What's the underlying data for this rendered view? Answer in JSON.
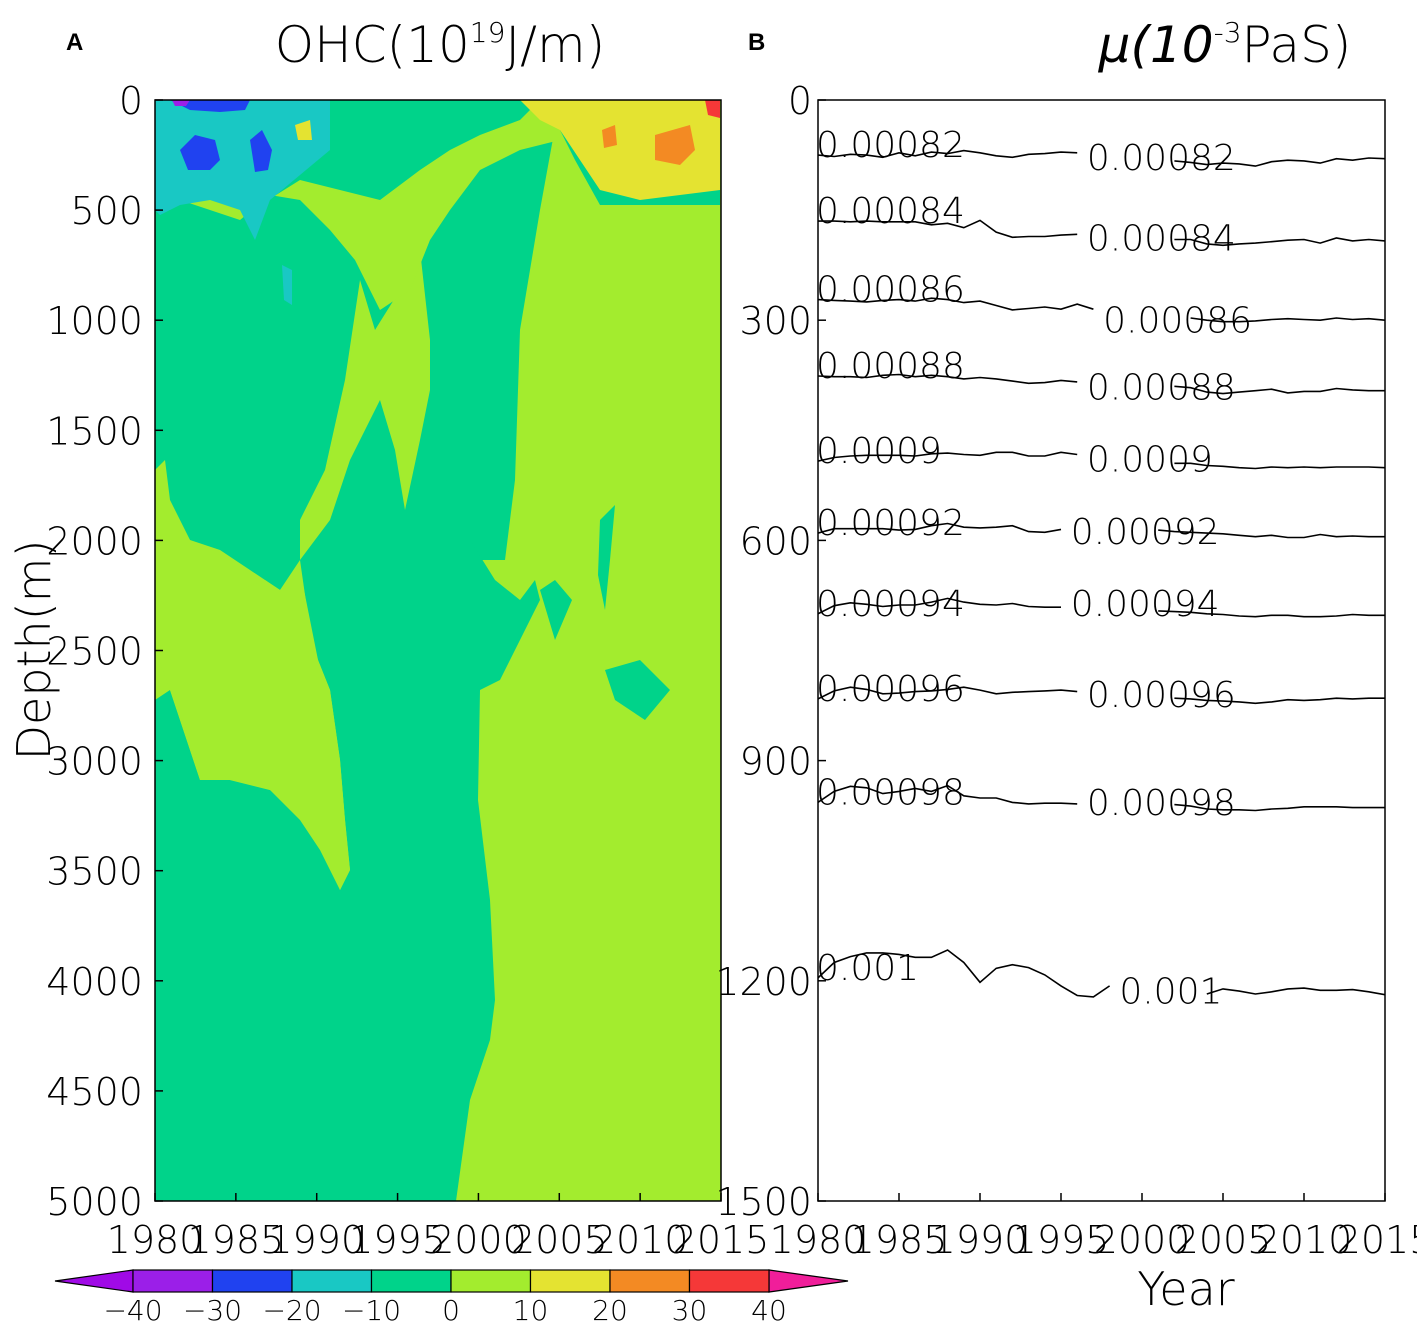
{
  "chart_data": [
    {
      "panel": "A",
      "type": "heatmap",
      "title": "OHC(10^19J/m)",
      "title_base": "OHC(10",
      "title_exp": "19",
      "title_tail": "J/m)",
      "ylabel": "Depth(m)",
      "xlabel": "",
      "xlim": [
        1980,
        2015
      ],
      "ylim": [
        0,
        5000
      ],
      "y_inverted": true,
      "x_ticks": [
        1980,
        1985,
        1990,
        1995,
        2000,
        2005,
        2010,
        2015
      ],
      "y_ticks": [
        0,
        500,
        1000,
        1500,
        2000,
        2500,
        3000,
        3500,
        4000,
        4500,
        5000
      ],
      "colorbar": {
        "levels": [
          -40,
          -30,
          -20,
          -10,
          0,
          10,
          20,
          30,
          40
        ],
        "colors": [
          "#9B1FE8",
          "#2042F0",
          "#19C8C4",
          "#00D38A",
          "#A3EC2E",
          "#E4E331",
          "#F38A23",
          "#F53838"
        ],
        "under_color": "#A00AE6",
        "over_color": "#F01E9A"
      },
      "regions": [
        {
          "range": "10 to 20",
          "description": "surface warming after ~2004, 0–400 m",
          "vertices": [
            [
              2003,
              0
            ],
            [
              2015,
              0
            ],
            [
              2015,
              450
            ],
            [
              2008,
              450
            ],
            [
              2003,
              350
            ],
            [
              2001,
              200
            ]
          ]
        },
        {
          "range": "20 to 30",
          "description": "warm patch ~2010",
          "vertices": [
            [
              2009.3,
              120
            ],
            [
              2010.8,
              80
            ],
            [
              2011.3,
              200
            ],
            [
              2010.5,
              300
            ],
            [
              2009.3,
              280
            ]
          ]
        },
        {
          "range": "-30 to -20",
          "description": "cold patch ~1982",
          "vertices": [
            [
              1981.2,
              180
            ],
            [
              1982.5,
              110
            ],
            [
              1983.8,
              160
            ],
            [
              1983.8,
              320
            ],
            [
              1982.2,
              340
            ]
          ]
        },
        {
          "range": "-30 to -20",
          "description": "cold patch ~1986",
          "vertices": [
            [
              1986.0,
              170
            ],
            [
              1986.8,
              120
            ],
            [
              1987.8,
              200
            ],
            [
              1987.3,
              340
            ],
            [
              1986.2,
              320
            ]
          ]
        }
      ]
    },
    {
      "panel": "B",
      "type": "line",
      "title": "μ(10^-3PaS)",
      "title_base": "μ(10",
      "title_exp": "-3",
      "title_tail": "PaS)",
      "xlabel": "Year",
      "ylabel": "",
      "xlim": [
        1980,
        2015
      ],
      "ylim": [
        0,
        1500
      ],
      "y_inverted": true,
      "x_ticks": [
        1980,
        1985,
        1990,
        1995,
        2000,
        2005,
        2010,
        2015
      ],
      "y_ticks": [
        0,
        300,
        600,
        900,
        1200,
        1500
      ],
      "x": [
        1980,
        1981,
        1982,
        1983,
        1984,
        1985,
        1986,
        1987,
        1988,
        1989,
        1990,
        1991,
        1992,
        1993,
        1994,
        1995,
        1996,
        1997,
        1998,
        1999,
        2000,
        2001,
        2002,
        2003,
        2004,
        2005,
        2006,
        2007,
        2008,
        2009,
        2010,
        2011,
        2012,
        2013,
        2014,
        2015
      ],
      "series": [
        {
          "name": "0.00082",
          "values": [
            75,
            77,
            74,
            75,
            78,
            72,
            76,
            71,
            73,
            69,
            72,
            76,
            78,
            74,
            73,
            71,
            72,
            71,
            76,
            79,
            82,
            80,
            83,
            85,
            88,
            86,
            87,
            90,
            84,
            82,
            83,
            86,
            80,
            82,
            79,
            80
          ]
        },
        {
          "name": "0.00084",
          "values": [
            165,
            165,
            166,
            165,
            166,
            166,
            166,
            170,
            168,
            174,
            164,
            180,
            187,
            186,
            186,
            184,
            183,
            184,
            186,
            185,
            187,
            189,
            190,
            190,
            196,
            198,
            196,
            195,
            193,
            191,
            190,
            195,
            188,
            192,
            190,
            192
          ]
        },
        {
          "name": "0.00086",
          "values": [
            272,
            273,
            274,
            275,
            273,
            272,
            274,
            270,
            272,
            276,
            274,
            280,
            286,
            284,
            282,
            285,
            278,
            285,
            290,
            298,
            297,
            298,
            296,
            297,
            300,
            302,
            302,
            301,
            299,
            298,
            299,
            300,
            297,
            299,
            298,
            300
          ]
        },
        {
          "name": "0.00088",
          "values": [
            376,
            377,
            377,
            378,
            375,
            374,
            377,
            375,
            377,
            380,
            378,
            380,
            383,
            386,
            385,
            382,
            384,
            380,
            389,
            390,
            392,
            391,
            390,
            392,
            398,
            400,
            398,
            396,
            394,
            399,
            397,
            397,
            393,
            395,
            396,
            396
          ]
        },
        {
          "name": "0.0009",
          "values": [
            492,
            487,
            485,
            484,
            484,
            484,
            485,
            482,
            481,
            483,
            484,
            480,
            480,
            485,
            485,
            480,
            483,
            483,
            487,
            491,
            494,
            494,
            495,
            495,
            498,
            499,
            501,
            502,
            500,
            501,
            500,
            501,
            500,
            500,
            500,
            501
          ]
        },
        {
          "name": "0.00092",
          "values": [
            590,
            584,
            584,
            584,
            584,
            586,
            585,
            580,
            577,
            582,
            583,
            582,
            580,
            588,
            589,
            585,
            587,
            586,
            580,
            578,
            584,
            586,
            588,
            589,
            590,
            591,
            593,
            595,
            593,
            596,
            596,
            592,
            595,
            594,
            595,
            595
          ]
        },
        {
          "name": "0.00094",
          "values": [
            700,
            689,
            685,
            687,
            690,
            688,
            688,
            684,
            679,
            684,
            687,
            688,
            686,
            690,
            691,
            691,
            689,
            684,
            688,
            690,
            693,
            696,
            697,
            698,
            700,
            701,
            703,
            704,
            702,
            702,
            704,
            704,
            703,
            701,
            702,
            702
          ]
        },
        {
          "name": "0.00096",
          "values": [
            816,
            805,
            800,
            803,
            809,
            808,
            806,
            805,
            803,
            800,
            804,
            809,
            807,
            806,
            805,
            804,
            806,
            807,
            808,
            810,
            812,
            814,
            815,
            816,
            818,
            819,
            820,
            822,
            820,
            817,
            818,
            817,
            815,
            816,
            815,
            815
          ]
        },
        {
          "name": "0.00098",
          "values": [
            957,
            942,
            935,
            937,
            945,
            942,
            938,
            942,
            934,
            948,
            951,
            951,
            957,
            959,
            958,
            958,
            959,
            957,
            955,
            955,
            956,
            960,
            960,
            962,
            966,
            967,
            967,
            968,
            966,
            965,
            963,
            963,
            963,
            964,
            964,
            964
          ]
        },
        {
          "name": "0.001",
          "values": [
            1196,
            1175,
            1167,
            1162,
            1162,
            1164,
            1168,
            1168,
            1158,
            1175,
            1202,
            1183,
            1178,
            1182,
            1192,
            1207,
            1220,
            1222,
            1207,
            1198,
            1212,
            1220,
            1212,
            1222,
            1218,
            1211,
            1214,
            1218,
            1215,
            1211,
            1210,
            1213,
            1213,
            1212,
            1215,
            1219
          ]
        }
      ]
    }
  ]
}
